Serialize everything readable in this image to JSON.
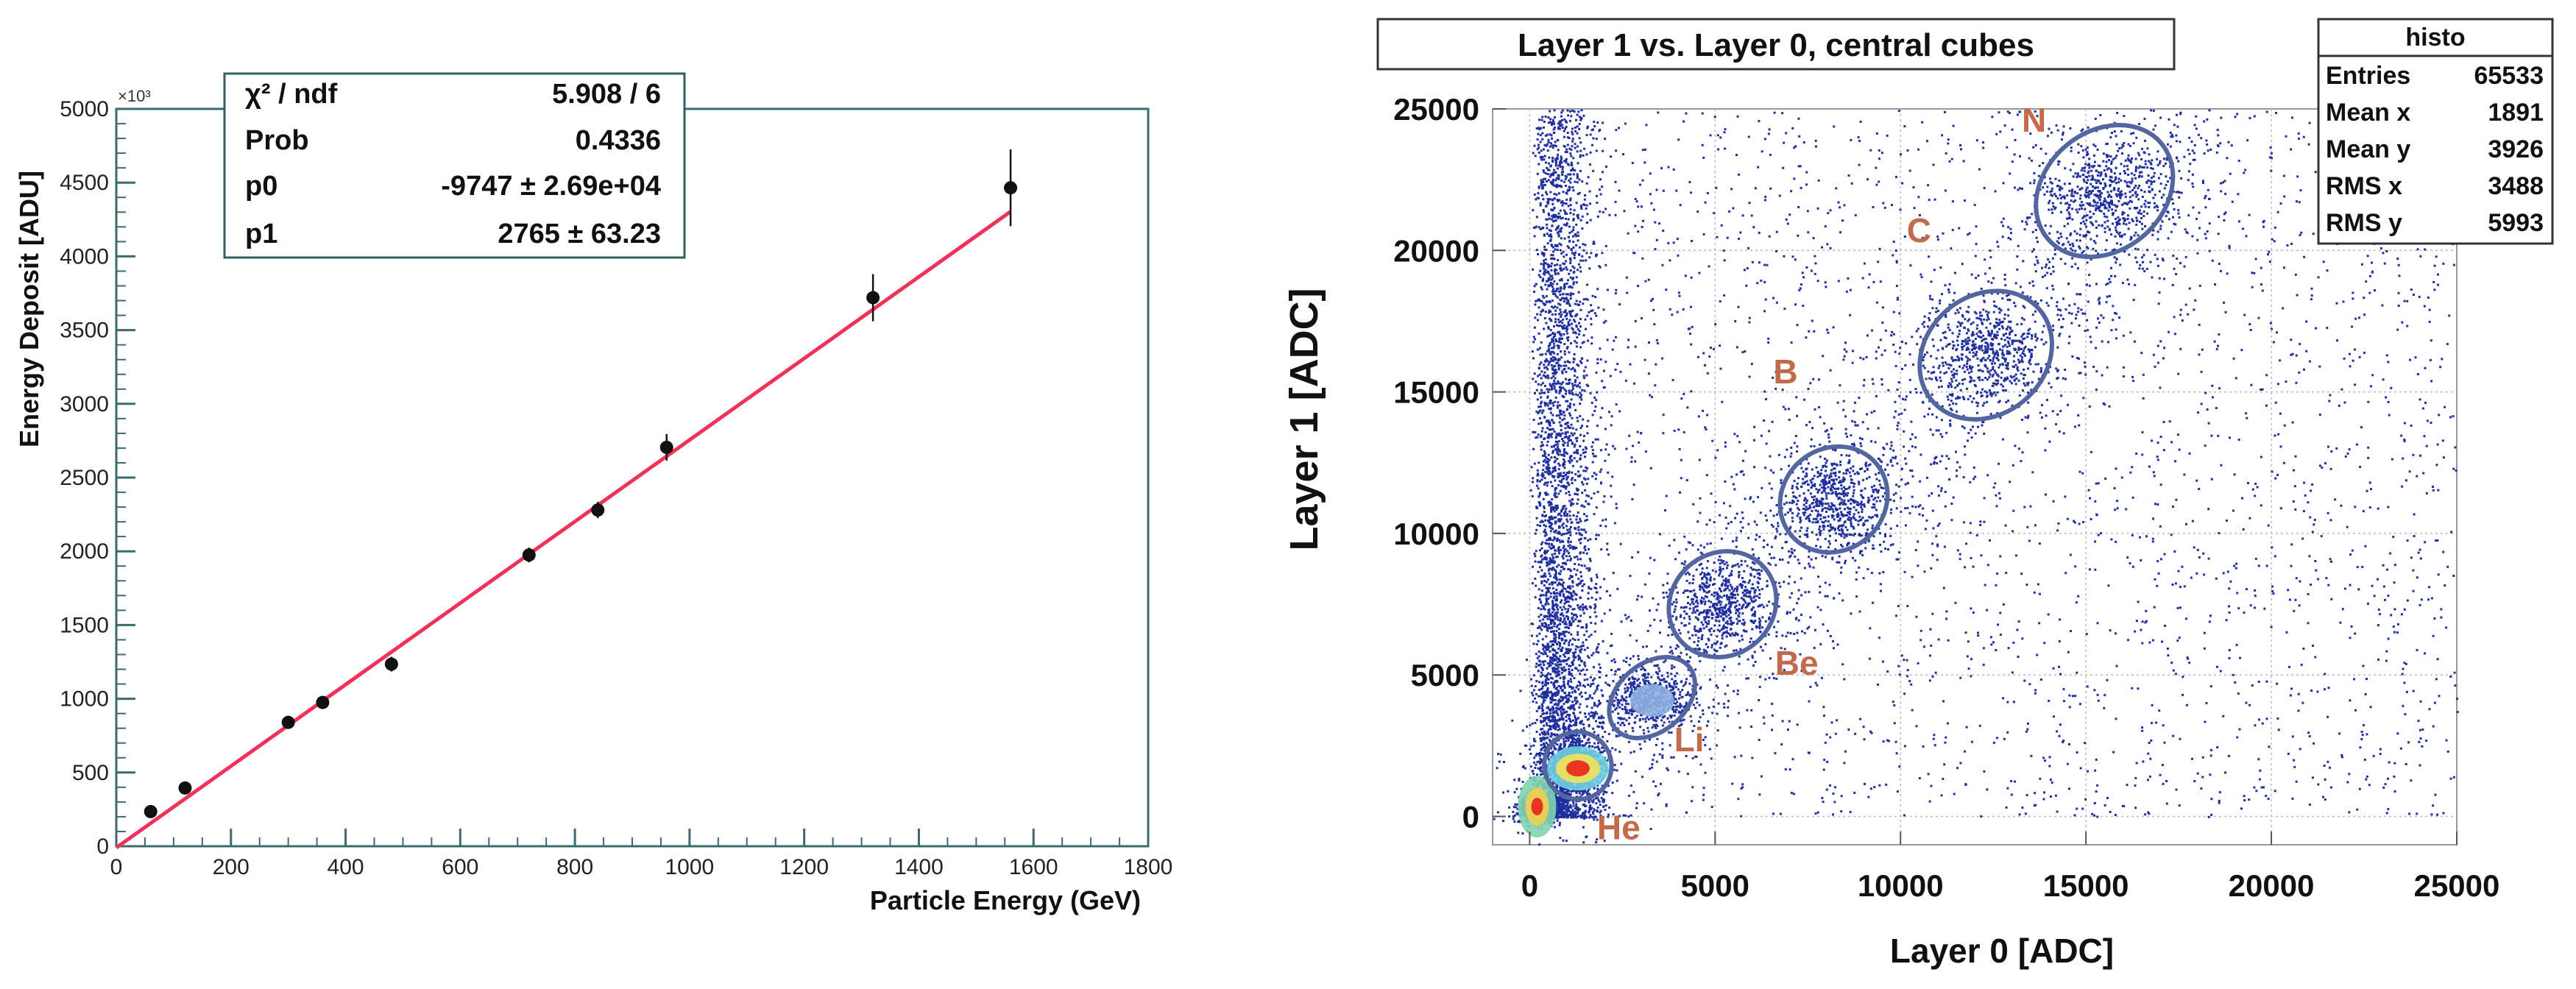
{
  "chart_data": [
    {
      "type": "scatter",
      "title": "",
      "xlabel": "Particle Energy (GeV)",
      "ylabel": "Energy Deposit [ADU]",
      "y_multiplier": "×10³",
      "xlim": [
        0,
        1800
      ],
      "ylim": [
        0,
        5000
      ],
      "xticks": [
        "0",
        "200",
        "400",
        "600",
        "800",
        "1000",
        "1200",
        "1400",
        "1600",
        "1800"
      ],
      "yticks": [
        "0",
        "500",
        "1000",
        "1500",
        "2000",
        "2500",
        "3000",
        "3500",
        "4000",
        "4500",
        "5000"
      ],
      "points": {
        "x": [
          60,
          120,
          300,
          360,
          480,
          720,
          840,
          960,
          1320,
          1560
        ],
        "y": [
          235,
          395,
          840,
          975,
          1235,
          1975,
          2280,
          2705,
          3720,
          4465
        ],
        "yerr": [
          25,
          25,
          25,
          30,
          50,
          50,
          55,
          90,
          160,
          260
        ]
      },
      "fit": {
        "p0": -9.747,
        "p1": 2.765,
        "x_range": [
          0,
          1560
        ],
        "color": "#f0325a"
      },
      "stats_box": [
        {
          "label": "χ² / ndf",
          "value": "5.908 / 6"
        },
        {
          "label": "Prob",
          "value": "0.4336"
        },
        {
          "label": "p0",
          "value": "-9747 ± 2.69e+04"
        },
        {
          "label": "p1",
          "value": "2765 ± 63.23"
        }
      ]
    },
    {
      "type": "heatmap",
      "title": "Layer 1 vs. Layer 0, central cubes",
      "xlabel": "Layer 0 [ADC]",
      "ylabel": "Layer 1 [ADC]",
      "xlim": [
        -1000,
        25000
      ],
      "ylim": [
        -1000,
        25000
      ],
      "xticks": [
        "0",
        "5000",
        "10000",
        "15000",
        "20000",
        "25000"
      ],
      "yticks": [
        "0",
        "5000",
        "10000",
        "15000",
        "20000",
        "25000"
      ],
      "grid": true,
      "stats_box": {
        "title": "histo",
        "rows": [
          {
            "label": "Entries",
            "value": "65533"
          },
          {
            "label": "Mean x",
            "value": "1891"
          },
          {
            "label": "Mean y",
            "value": "3926"
          },
          {
            "label": "RMS x",
            "value": "3488"
          },
          {
            "label": "RMS y",
            "value": "5993"
          }
        ]
      },
      "clusters": [
        {
          "label": "He",
          "cx": 250,
          "cy": 300,
          "rx": 700,
          "ry": 600,
          "label_x": 2400,
          "label_y": -800
        },
        {
          "label": "Li",
          "cx": 1300,
          "cy": 1800,
          "rx": 900,
          "ry": 1200,
          "label_x": 4300,
          "label_y": 2300
        },
        {
          "label": "Be",
          "cx": 3300,
          "cy": 4200,
          "rx": 1300,
          "ry": 1200,
          "label_x": 7200,
          "label_y": 5000
        },
        {
          "label": "",
          "cx": 5200,
          "cy": 7500,
          "rx": 1500,
          "ry": 1800
        },
        {
          "label": "B",
          "cx": 8200,
          "cy": 11200,
          "rx": 1500,
          "ry": 1800,
          "label_x": 6900,
          "label_y": 15300
        },
        {
          "label": "C",
          "cx": 12300,
          "cy": 16300,
          "rx": 1900,
          "ry": 2100,
          "label_x": 10500,
          "label_y": 20300
        },
        {
          "label": "N",
          "cx": 15500,
          "cy": 22100,
          "rx": 2000,
          "ry": 2100,
          "label_x": 13600,
          "label_y": 24200
        }
      ],
      "colors": {
        "scatter": "#1f2f9e",
        "ellipse": "#5466a0",
        "label": "#c46a4c",
        "hot": "#e8231a"
      }
    }
  ]
}
